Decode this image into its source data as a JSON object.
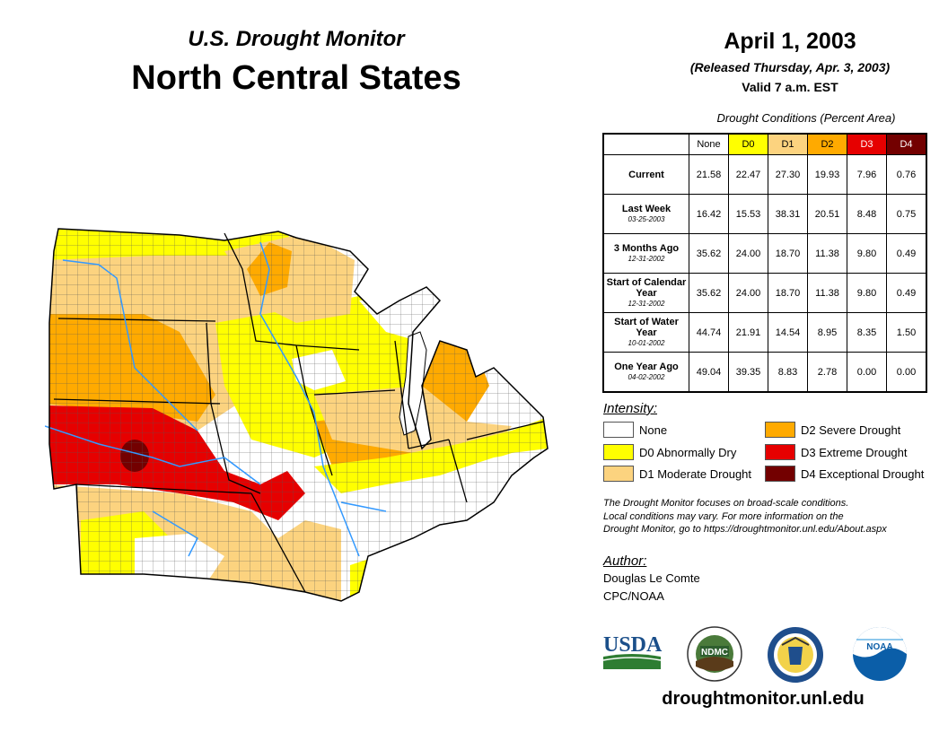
{
  "header": {
    "subtitle": "U.S. Drought Monitor",
    "title": "North Central States",
    "date": "April 1, 2003",
    "released": "(Released Thursday, Apr. 3, 2003)",
    "valid": "Valid 7 a.m. EST"
  },
  "table": {
    "caption": "Drought Conditions (Percent Area)",
    "columns": [
      "None",
      "D0",
      "D1",
      "D2",
      "D3",
      "D4"
    ],
    "column_colors": [
      "#ffffff",
      "#ffff00",
      "#fcd37f",
      "#ffaa00",
      "#e60000",
      "#730000"
    ],
    "rows": [
      {
        "label": "Current",
        "date": "",
        "values": [
          "21.58",
          "22.47",
          "27.30",
          "19.93",
          "7.96",
          "0.76"
        ]
      },
      {
        "label": "Last Week",
        "date": "03-25-2003",
        "values": [
          "16.42",
          "15.53",
          "38.31",
          "20.51",
          "8.48",
          "0.75"
        ]
      },
      {
        "label": "3 Months Ago",
        "date": "12-31-2002",
        "values": [
          "35.62",
          "24.00",
          "18.70",
          "11.38",
          "9.80",
          "0.49"
        ]
      },
      {
        "label": "Start of Calendar Year",
        "date": "12-31-2002",
        "values": [
          "35.62",
          "24.00",
          "18.70",
          "11.38",
          "9.80",
          "0.49"
        ]
      },
      {
        "label": "Start of Water Year",
        "date": "10-01-2002",
        "values": [
          "44.74",
          "21.91",
          "14.54",
          "8.95",
          "8.35",
          "1.50"
        ]
      },
      {
        "label": "One Year Ago",
        "date": "04-02-2002",
        "values": [
          "49.04",
          "39.35",
          "8.83",
          "2.78",
          "0.00",
          "0.00"
        ]
      }
    ]
  },
  "legend": {
    "title": "Intensity:",
    "items": [
      {
        "label": "None",
        "color": "#ffffff"
      },
      {
        "label": "D0 Abnormally Dry",
        "color": "#ffff00"
      },
      {
        "label": "D1 Moderate Drought",
        "color": "#fcd37f"
      },
      {
        "label": "D2 Severe Drought",
        "color": "#ffaa00"
      },
      {
        "label": "D3 Extreme Drought",
        "color": "#e60000"
      },
      {
        "label": "D4 Exceptional Drought",
        "color": "#730000"
      }
    ]
  },
  "note": {
    "line1": "The Drought Monitor focuses on broad-scale conditions.",
    "line2": "Local conditions may vary. For more information on the",
    "line3": "Drought Monitor, go to https://droughtmonitor.unl.edu/About.aspx"
  },
  "author": {
    "label": "Author:",
    "name": "Douglas Le Comte",
    "org": "CPC/NOAA"
  },
  "logos": {
    "usda": "USDA",
    "ndmc": "NDMC",
    "noaa": "NOAA"
  },
  "footer": {
    "url": "droughtmonitor.unl.edu"
  }
}
